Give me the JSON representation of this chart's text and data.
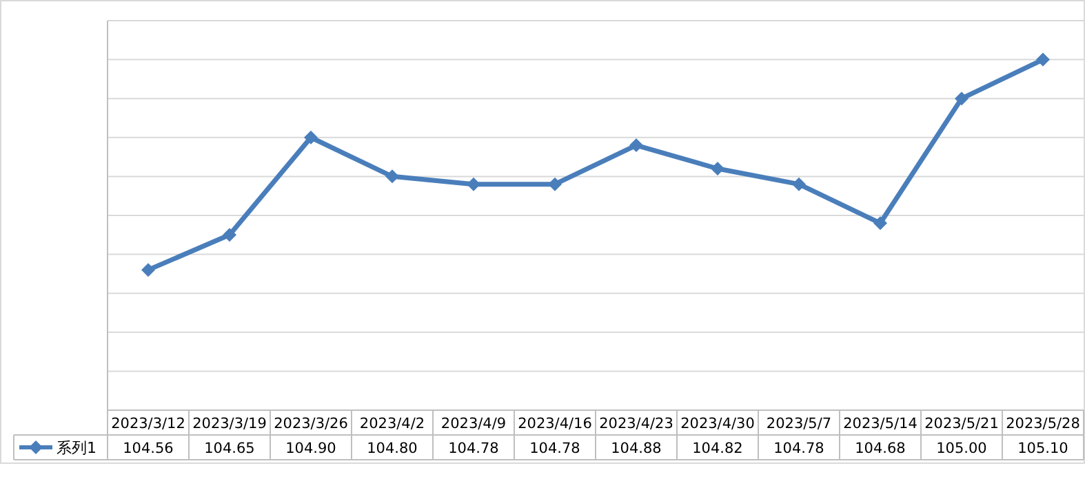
{
  "chart_data": {
    "type": "line",
    "categories": [
      "2023/3/12",
      "2023/3/19",
      "2023/3/26",
      "2023/4/2",
      "2023/4/9",
      "2023/4/16",
      "2023/4/23",
      "2023/4/30",
      "2023/5/7",
      "2023/5/14",
      "2023/5/21",
      "2023/5/28"
    ],
    "series": [
      {
        "name": "系列1",
        "color": "#4a7ebb",
        "values": [
          104.56,
          104.65,
          104.9,
          104.8,
          104.78,
          104.78,
          104.88,
          104.82,
          104.78,
          104.68,
          105.0,
          105.1
        ],
        "value_labels": [
          "104.56",
          "104.65",
          "104.90",
          "104.80",
          "104.78",
          "104.78",
          "104.88",
          "104.82",
          "104.78",
          "104.68",
          "105.00",
          "105.10"
        ]
      }
    ],
    "grid": "y",
    "marker": "diamond",
    "tick_labels": "x",
    "legend": "bottom left"
  }
}
